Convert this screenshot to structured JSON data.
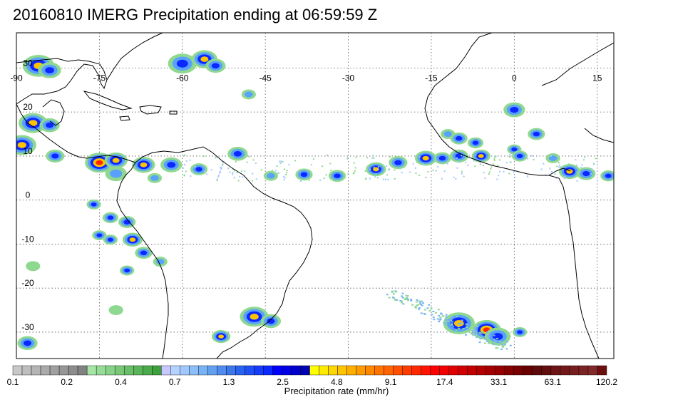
{
  "title": "20160810 IMERG Precipitation ending at 06:59:59 Z",
  "map": {
    "lon_range": [
      -90,
      18
    ],
    "lat_range": [
      -36,
      38
    ],
    "lon_ticks": [
      -90,
      -75,
      -60,
      -45,
      -30,
      -15,
      0,
      15
    ],
    "lon_tick_labels": [
      "-90",
      "-75",
      "-60",
      "-45",
      "-30",
      "-15",
      "0",
      "15"
    ],
    "lat_ticks": [
      30,
      20,
      10,
      0,
      -10,
      -20,
      -30
    ],
    "lat_tick_labels": [
      "30",
      "20",
      "10",
      "0",
      "-10",
      "-20",
      "-30"
    ],
    "grid": true,
    "coastline_color": "#000000",
    "rain_cells": [
      {
        "lon": -86,
        "lat": 30.5,
        "r": 2.2,
        "i": 3
      },
      {
        "lon": -84,
        "lat": 29.5,
        "r": 1.6,
        "i": 2
      },
      {
        "lon": -60,
        "lat": 31,
        "r": 2.0,
        "i": 2
      },
      {
        "lon": -56,
        "lat": 32,
        "r": 1.8,
        "i": 3
      },
      {
        "lon": -54,
        "lat": 30.5,
        "r": 1.4,
        "i": 2
      },
      {
        "lon": -48,
        "lat": 24,
        "r": 1.0,
        "i": 1
      },
      {
        "lon": -87,
        "lat": 17.5,
        "r": 2.0,
        "i": 3
      },
      {
        "lon": -84,
        "lat": 17,
        "r": 1.4,
        "i": 2
      },
      {
        "lon": -89,
        "lat": 12.5,
        "r": 2.0,
        "i": 3
      },
      {
        "lon": -83,
        "lat": 10,
        "r": 1.3,
        "i": 2
      },
      {
        "lon": -75,
        "lat": 8.5,
        "r": 2.0,
        "i": 4
      },
      {
        "lon": -72,
        "lat": 9,
        "r": 1.6,
        "i": 3
      },
      {
        "lon": -72,
        "lat": 6,
        "r": 1.5,
        "i": 1
      },
      {
        "lon": -67,
        "lat": 8,
        "r": 1.6,
        "i": 3
      },
      {
        "lon": -62,
        "lat": 8,
        "r": 1.5,
        "i": 2
      },
      {
        "lon": -57,
        "lat": 7,
        "r": 1.2,
        "i": 2
      },
      {
        "lon": -65,
        "lat": 5,
        "r": 1.0,
        "i": 1
      },
      {
        "lon": -50,
        "lat": 10.5,
        "r": 1.4,
        "i": 2
      },
      {
        "lon": -44,
        "lat": 5.5,
        "r": 1.0,
        "i": 1
      },
      {
        "lon": -38,
        "lat": 5.8,
        "r": 1.2,
        "i": 2
      },
      {
        "lon": -32,
        "lat": 5.5,
        "r": 1.2,
        "i": 2
      },
      {
        "lon": -25,
        "lat": 7,
        "r": 1.4,
        "i": 3
      },
      {
        "lon": -21,
        "lat": 8.5,
        "r": 1.3,
        "i": 2
      },
      {
        "lon": -16,
        "lat": 9.5,
        "r": 1.5,
        "i": 3
      },
      {
        "lon": -13,
        "lat": 9.5,
        "r": 1.2,
        "i": 2
      },
      {
        "lon": -10,
        "lat": 10,
        "r": 1.3,
        "i": 2
      },
      {
        "lon": -6,
        "lat": 10,
        "r": 1.3,
        "i": 3
      },
      {
        "lon": 0,
        "lat": 11.5,
        "r": 1.0,
        "i": 2
      },
      {
        "lon": 1,
        "lat": 10,
        "r": 1.1,
        "i": 2
      },
      {
        "lon": -12,
        "lat": 15,
        "r": 1.0,
        "i": 1
      },
      {
        "lon": -10,
        "lat": 14,
        "r": 1.2,
        "i": 2
      },
      {
        "lon": -7,
        "lat": 13,
        "r": 1.1,
        "i": 2
      },
      {
        "lon": 0,
        "lat": 20.5,
        "r": 1.5,
        "i": 2
      },
      {
        "lon": 4,
        "lat": 15,
        "r": 1.2,
        "i": 2
      },
      {
        "lon": 7,
        "lat": 9.5,
        "r": 1.0,
        "i": 1
      },
      {
        "lon": 10,
        "lat": 6.5,
        "r": 1.5,
        "i": 3
      },
      {
        "lon": 13,
        "lat": 6,
        "r": 1.3,
        "i": 2
      },
      {
        "lon": 17,
        "lat": 5.5,
        "r": 1.1,
        "i": 2
      },
      {
        "lon": -76,
        "lat": -1,
        "r": 1.0,
        "i": 2
      },
      {
        "lon": -73,
        "lat": -4,
        "r": 1.1,
        "i": 2
      },
      {
        "lon": -70,
        "lat": -5,
        "r": 1.2,
        "i": 2
      },
      {
        "lon": -75,
        "lat": -8,
        "r": 1.0,
        "i": 2
      },
      {
        "lon": -73,
        "lat": -9,
        "r": 1.0,
        "i": 2
      },
      {
        "lon": -69,
        "lat": -9,
        "r": 1.4,
        "i": 3
      },
      {
        "lon": -67,
        "lat": -12,
        "r": 1.2,
        "i": 2
      },
      {
        "lon": -64,
        "lat": -14,
        "r": 1.0,
        "i": 1
      },
      {
        "lon": -70,
        "lat": -16,
        "r": 1.0,
        "i": 2
      },
      {
        "lon": -87,
        "lat": -15,
        "r": 1.0,
        "i": 0
      },
      {
        "lon": -47,
        "lat": -26.5,
        "r": 2.0,
        "i": 3
      },
      {
        "lon": -44,
        "lat": -27.5,
        "r": 1.4,
        "i": 2
      },
      {
        "lon": -53,
        "lat": -31,
        "r": 1.3,
        "i": 3
      },
      {
        "lon": -10,
        "lat": -28,
        "r": 2.2,
        "i": 3
      },
      {
        "lon": -5,
        "lat": -29.5,
        "r": 2.0,
        "i": 4
      },
      {
        "lon": -3,
        "lat": -31,
        "r": 1.8,
        "i": 2
      },
      {
        "lon": 1,
        "lat": -30,
        "r": 1.0,
        "i": 2
      },
      {
        "lon": -88,
        "lat": -32.5,
        "r": 1.4,
        "i": 2
      },
      {
        "lon": -72,
        "lat": -25,
        "r": 1.0,
        "i": 0
      }
    ]
  },
  "colorbar": {
    "title": "Precipitation rate (mm/hr)",
    "colors": [
      "#c8c8c8",
      "#bebebe",
      "#b4b4b4",
      "#aaaaaa",
      "#a0a0a0",
      "#969696",
      "#8c8c8c",
      "#828282",
      "#a5e6a5",
      "#96dc96",
      "#87d287",
      "#78c878",
      "#69be69",
      "#5ab45a",
      "#4baa4b",
      "#3ca03c",
      "#c8c8ff",
      "#b4d2ff",
      "#a0c8ff",
      "#8cbefa",
      "#78b4f5",
      "#64a0f0",
      "#508cf0",
      "#3c78eb",
      "#2864f0",
      "#1e50f5",
      "#143cfa",
      "#0a28ff",
      "#0000ff",
      "#0000e6",
      "#0000cd",
      "#0000b4",
      "#ffff00",
      "#ffeb00",
      "#ffd700",
      "#ffc300",
      "#ffaf00",
      "#ff9b00",
      "#ff8700",
      "#ff7300",
      "#ff6400",
      "#ff5000",
      "#ff3c00",
      "#ff2800",
      "#ff1400",
      "#ff0000",
      "#f00000",
      "#e10000",
      "#d20000",
      "#c30000",
      "#b40000",
      "#a50000",
      "#960000",
      "#870000",
      "#780000",
      "#690000",
      "#5f0a0a",
      "#640f0f",
      "#6e1414",
      "#731919",
      "#781e1e",
      "#7d2323",
      "#822828",
      "#6e0f0f"
    ],
    "tick_labels": [
      "0.1",
      "0.2",
      "0.4",
      "0.7",
      "1.3",
      "2.5",
      "4.8",
      "9.1",
      "17.4",
      "33.1",
      "63.1",
      "120.2"
    ]
  }
}
